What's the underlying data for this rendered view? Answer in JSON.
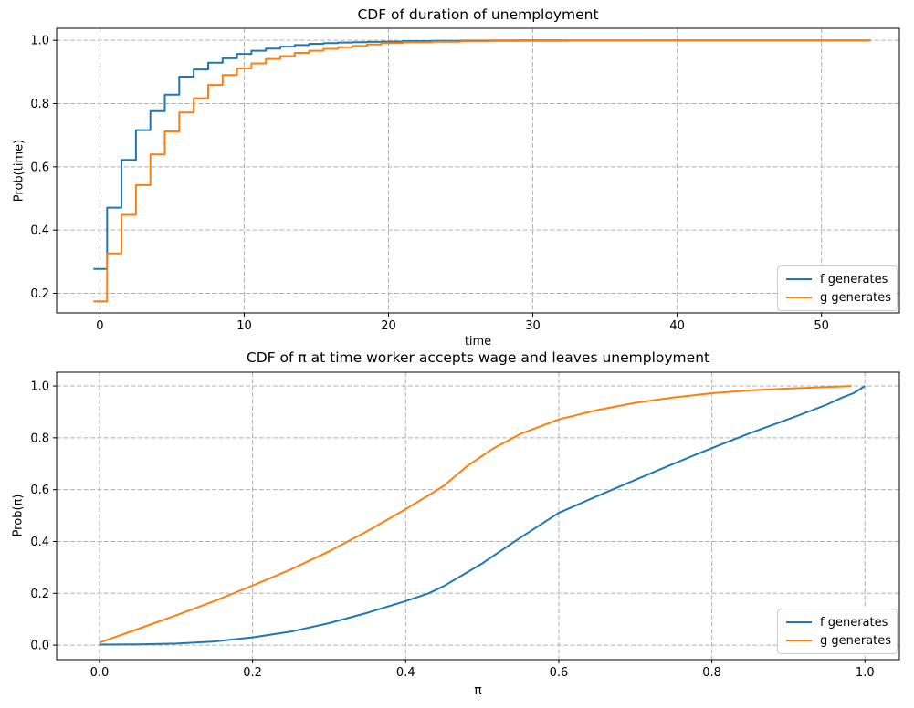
{
  "colors": {
    "f_series": "#1f77b4",
    "g_series": "#ff7f0e",
    "grid": "#b0b0b0",
    "spine": "#000000",
    "legend_border": "#cccccc",
    "background": "#ffffff"
  },
  "chart_data": [
    {
      "id": "duration-cdf",
      "type": "line",
      "title": "CDF of duration of unemployment",
      "xlabel": "time",
      "ylabel": "Prob(time)",
      "xlim": [
        -3.0,
        55.4
      ],
      "ylim": [
        0.138,
        1.038
      ],
      "grid": true,
      "x_tick_values": [
        0,
        10,
        20,
        30,
        40,
        50
      ],
      "x_tick_labels": [
        "0",
        "10",
        "20",
        "30",
        "40",
        "50"
      ],
      "y_tick_values": [
        0.2,
        0.4,
        0.6,
        0.8,
        1.0
      ],
      "y_tick_labels": [
        "0.2",
        "0.4",
        "0.6",
        "0.8",
        "1.0"
      ],
      "legend": {
        "position": "lower right",
        "entries": [
          "f generates",
          "g generates"
        ]
      },
      "series": [
        {
          "name": "f generates",
          "color": "#1f77b4",
          "style": "step-mid",
          "x": [
            0,
            1,
            2,
            3,
            4,
            5,
            6,
            7,
            8,
            9,
            10,
            11,
            12,
            13,
            14,
            15,
            16,
            17,
            18,
            19,
            20,
            22,
            24,
            26,
            28,
            30,
            35,
            40,
            45,
            50,
            53.4
          ],
          "y": [
            0.277,
            0.471,
            0.622,
            0.716,
            0.776,
            0.828,
            0.885,
            0.908,
            0.929,
            0.943,
            0.957,
            0.967,
            0.974,
            0.98,
            0.985,
            0.989,
            0.991,
            0.993,
            0.994,
            0.995,
            0.996,
            0.9975,
            0.9985,
            0.999,
            0.9993,
            0.9995,
            0.9997,
            0.9998,
            0.9999,
            1.0,
            1.0
          ]
        },
        {
          "name": "g generates",
          "color": "#ff7f0e",
          "style": "step-mid",
          "x": [
            0,
            1,
            2,
            3,
            4,
            5,
            6,
            7,
            8,
            9,
            10,
            11,
            12,
            13,
            14,
            15,
            16,
            17,
            18,
            19,
            20,
            22,
            24,
            26,
            28,
            30,
            35,
            40,
            45,
            50,
            53.4
          ],
          "y": [
            0.175,
            0.326,
            0.448,
            0.542,
            0.639,
            0.712,
            0.772,
            0.817,
            0.859,
            0.89,
            0.911,
            0.927,
            0.941,
            0.95,
            0.96,
            0.967,
            0.973,
            0.978,
            0.982,
            0.987,
            0.991,
            0.9935,
            0.9955,
            0.997,
            0.998,
            0.9985,
            0.9992,
            0.9996,
            0.9998,
            0.9999,
            1.0
          ]
        }
      ]
    },
    {
      "id": "pi-acceptance-cdf",
      "type": "line",
      "title": "CDF of π at time worker accepts wage and leaves unemployment",
      "xlabel": "π",
      "ylabel": "Prob(π)",
      "xlim": [
        -0.056,
        1.045
      ],
      "ylim": [
        -0.056,
        1.053
      ],
      "grid": true,
      "x_tick_values": [
        0.0,
        0.2,
        0.4,
        0.6,
        0.8,
        1.0
      ],
      "x_tick_labels": [
        "0.0",
        "0.2",
        "0.4",
        "0.6",
        "0.8",
        "1.0"
      ],
      "y_tick_values": [
        0.0,
        0.2,
        0.4,
        0.6,
        0.8,
        1.0
      ],
      "y_tick_labels": [
        "0.0",
        "0.2",
        "0.4",
        "0.6",
        "0.8",
        "1.0"
      ],
      "legend": {
        "position": "lower right",
        "entries": [
          "f generates",
          "g generates"
        ]
      },
      "series": [
        {
          "name": "f generates",
          "color": "#1f77b4",
          "style": "linear",
          "x": [
            0,
            0.05,
            0.1,
            0.15,
            0.2,
            0.25,
            0.3,
            0.35,
            0.4,
            0.43,
            0.45,
            0.5,
            0.55,
            0.6,
            0.65,
            0.7,
            0.75,
            0.8,
            0.85,
            0.9,
            0.93,
            0.95,
            0.97,
            0.985,
            1.0
          ],
          "y": [
            0.002,
            0.003,
            0.006,
            0.014,
            0.03,
            0.052,
            0.085,
            0.125,
            0.17,
            0.2,
            0.228,
            0.315,
            0.415,
            0.51,
            0.575,
            0.638,
            0.7,
            0.76,
            0.818,
            0.872,
            0.905,
            0.928,
            0.955,
            0.972,
            1.0
          ]
        },
        {
          "name": "g generates",
          "color": "#ff7f0e",
          "style": "linear",
          "x": [
            0,
            0.05,
            0.1,
            0.15,
            0.2,
            0.25,
            0.3,
            0.35,
            0.4,
            0.43,
            0.45,
            0.48,
            0.515,
            0.55,
            0.6,
            0.65,
            0.7,
            0.75,
            0.8,
            0.85,
            0.9,
            0.95,
            0.982
          ],
          "y": [
            0.01,
            0.062,
            0.115,
            0.17,
            0.23,
            0.292,
            0.362,
            0.44,
            0.525,
            0.578,
            0.615,
            0.69,
            0.76,
            0.815,
            0.871,
            0.907,
            0.935,
            0.956,
            0.972,
            0.983,
            0.99,
            0.996,
            1.0
          ]
        }
      ]
    }
  ]
}
